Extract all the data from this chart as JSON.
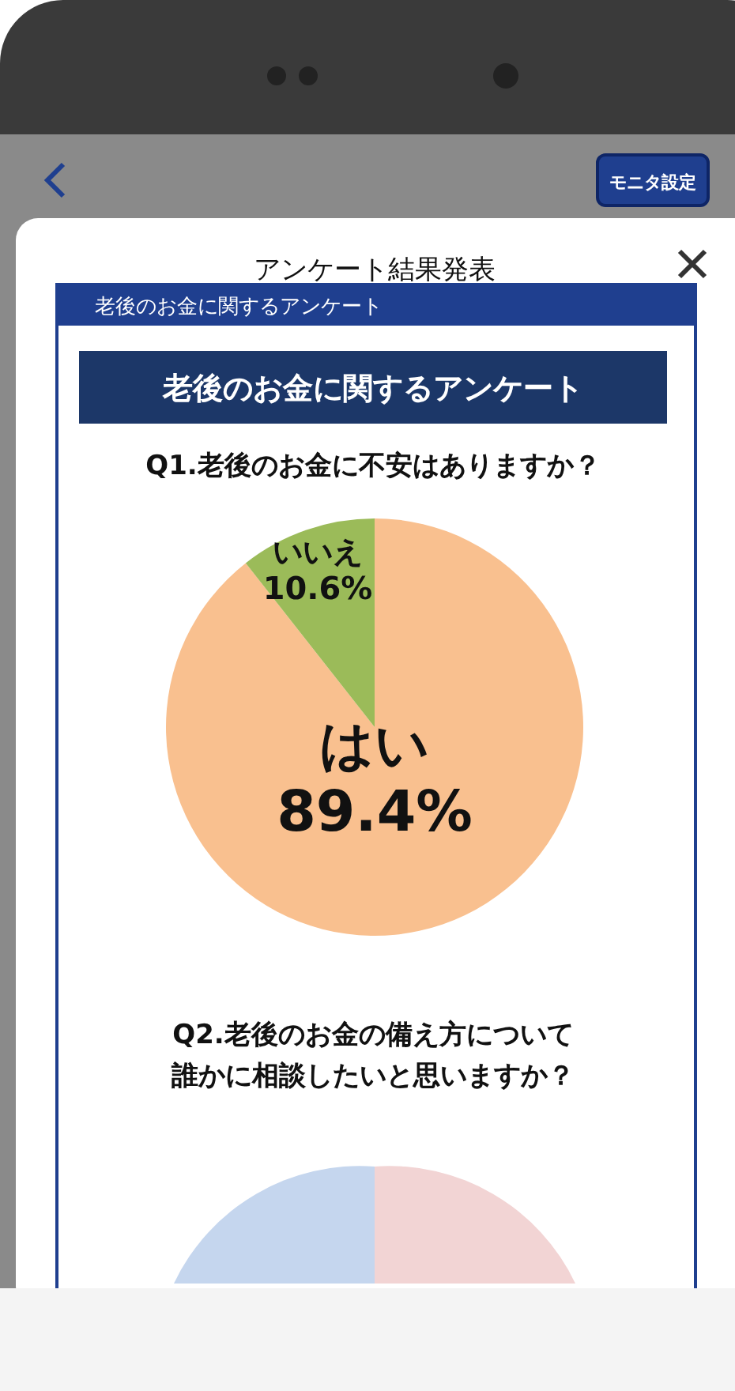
{
  "chart_data": {
    "type": "pie",
    "title": "老後のお金に関するアンケート",
    "subtitle": "Q1.老後のお金に不安はありますか？",
    "categories": [
      "はい",
      "いいえ"
    ],
    "values": [
      89.4,
      10.6
    ],
    "colors": [
      "#f9c08f",
      "#9bbb59"
    ],
    "value_labels": [
      "89.4%",
      "10.6%"
    ],
    "annotations": [
      "アンケート結果発表",
      "モニタ設定",
      "老後のお金に関するアンケート",
      "Q2.老後のお金の備え方について",
      "誰かに相談したいと思いますか？"
    ]
  }
}
